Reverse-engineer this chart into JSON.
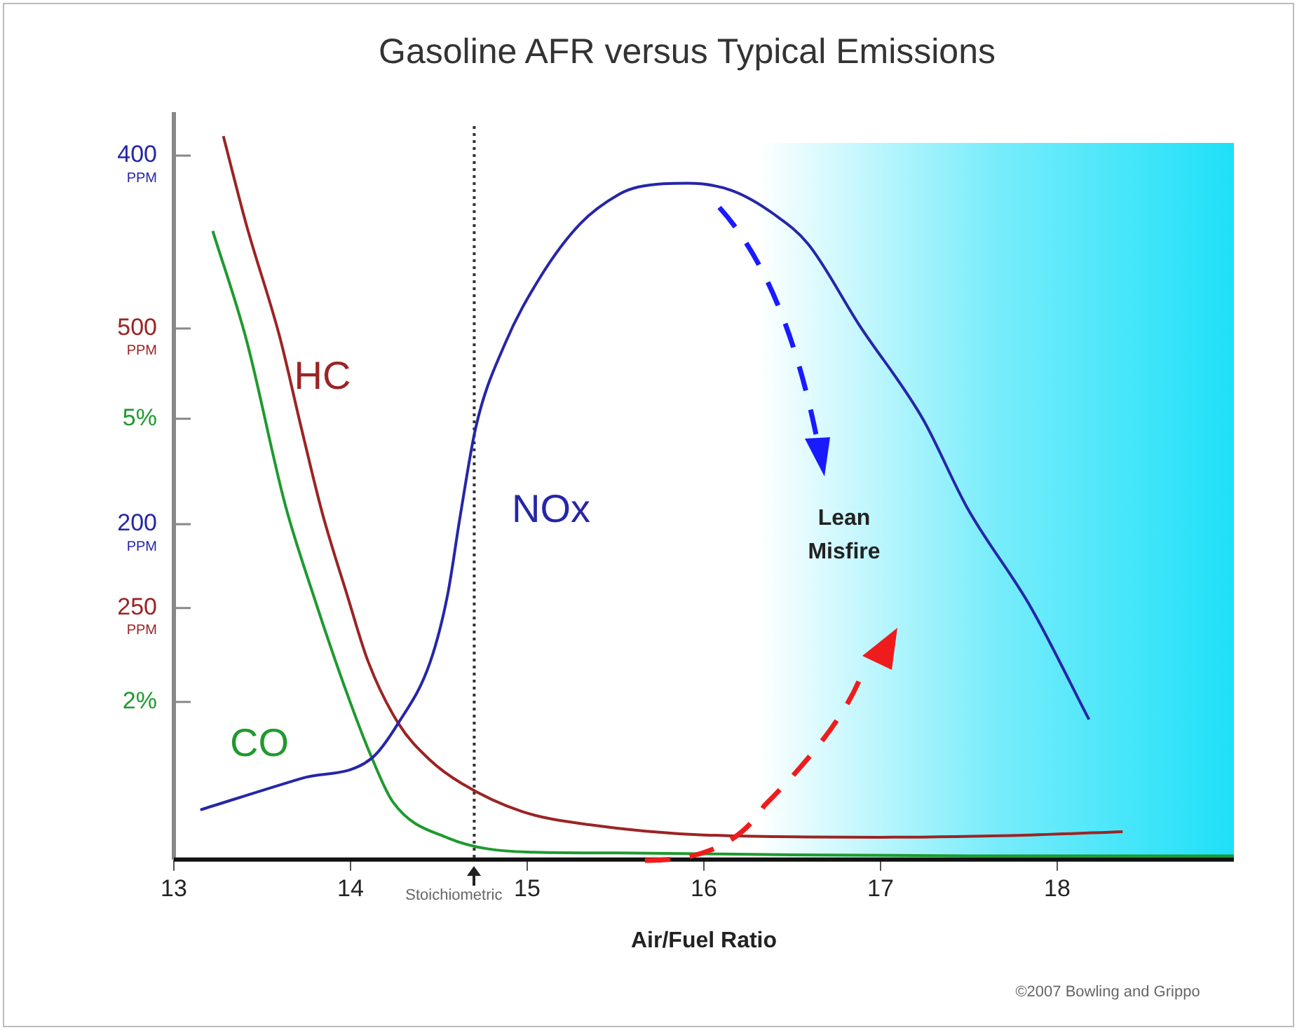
{
  "chart_data": {
    "type": "line",
    "title": "Gasoline AFR versus Typical Emissions",
    "xlabel": "Air/Fuel Ratio",
    "xlim": [
      13,
      19
    ],
    "xticks": [
      13,
      14,
      15,
      16,
      17,
      18
    ],
    "ylim": [
      18,
      416
    ],
    "yticks": [
      {
        "value": 400,
        "label": "400 PPM"
      },
      {
        "value": 200,
        "label": "200 PPM"
      }
    ],
    "y2lim": [
      25,
      681
    ],
    "y2ticks": [
      {
        "value": 500,
        "label": "500 PPM"
      },
      {
        "value": 250,
        "label": "250 PPM"
      }
    ],
    "y3lim": [
      0.33,
      8.1
    ],
    "y3ticks": [
      {
        "value": 5,
        "label": "5%"
      },
      {
        "value": 2,
        "label": "2%"
      }
    ],
    "series": [
      {
        "name": "NOx",
        "color": "#2626a8",
        "axis": "y",
        "x": [
          13.15,
          13.72,
          14.12,
          14.27,
          14.45,
          14.55,
          14.62,
          14.71,
          14.87,
          15.08,
          15.3,
          15.52,
          15.63,
          15.91,
          16.16,
          16.4,
          16.59,
          16.88,
          17.24,
          17.49,
          17.85,
          18.18
        ],
        "values": [
          45,
          62,
          73,
          92,
          125,
          162,
          204,
          253,
          297,
          335,
          363,
          379,
          383,
          385,
          381,
          368,
          352,
          308,
          257,
          209,
          155,
          94
        ]
      },
      {
        "name": "HC",
        "color": "#9b2424",
        "axis": "y2",
        "x": [
          13.28,
          13.41,
          13.6,
          13.72,
          13.84,
          13.98,
          14.1,
          14.27,
          14.45,
          14.63,
          14.97,
          15.36,
          16,
          17,
          17.85,
          18.37
        ],
        "values": [
          672,
          593,
          492,
          412,
          335,
          262,
          202,
          147,
          114,
          93,
          68,
          56,
          47,
          45,
          47,
          50
        ]
      },
      {
        "name": "CO",
        "color": "#1e9a2e",
        "axis": "y3",
        "x": [
          13.22,
          13.41,
          13.63,
          13.79,
          13.98,
          14.12,
          14.24,
          14.55,
          15,
          15.52,
          16.5,
          17.5,
          19
        ],
        "values": [
          6.99,
          5.84,
          4.09,
          3.13,
          2.09,
          1.41,
          0.94,
          0.56,
          0.41,
          0.4,
          0.38,
          0.37,
          0.37
        ]
      }
    ],
    "ref_lines": [
      {
        "axis": "x",
        "value": 14.7,
        "label": "Stoichiometric",
        "line_style": "dotted",
        "color": "#333333"
      }
    ],
    "bands": [
      {
        "axis": "x",
        "from": 16.3,
        "to": 19,
        "color": "#1ee0f8"
      }
    ],
    "annotations": [
      "Lean Misfire",
      "©2007 Bowling and Grippo"
    ]
  }
}
